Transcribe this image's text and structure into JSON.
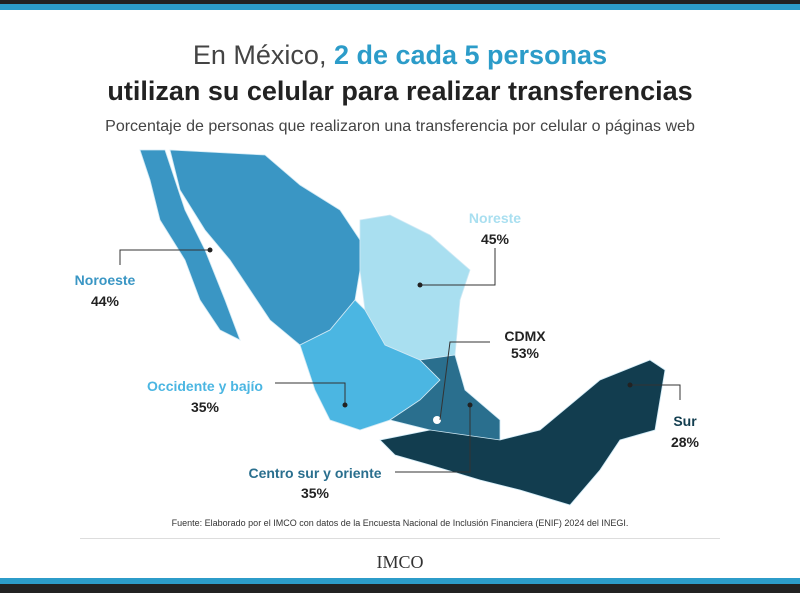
{
  "header": {
    "title_plain": "En México, ",
    "title_highlight": "2 de cada 5 personas",
    "title_line2": "utilizan su celular para realizar transferencias",
    "subtitle": "Porcentaje de personas que realizaron una transferencia por celular o páginas web"
  },
  "regions": [
    {
      "name": "Noroeste",
      "value": "44%"
    },
    {
      "name": "Noreste",
      "value": "45%"
    },
    {
      "name": "CDMX",
      "value": "53%"
    },
    {
      "name": "Occidente y bajío",
      "value": "35%"
    },
    {
      "name": "Sur",
      "value": "28%"
    },
    {
      "name": "Centro sur y oriente",
      "value": "35%"
    }
  ],
  "footer": {
    "source": "Fuente: Elaborado por el IMCO con datos de la Encuesta Nacional de Inclusión Financiera (ENIF) 2024 del INEGI.",
    "logo": "IMCO"
  }
}
